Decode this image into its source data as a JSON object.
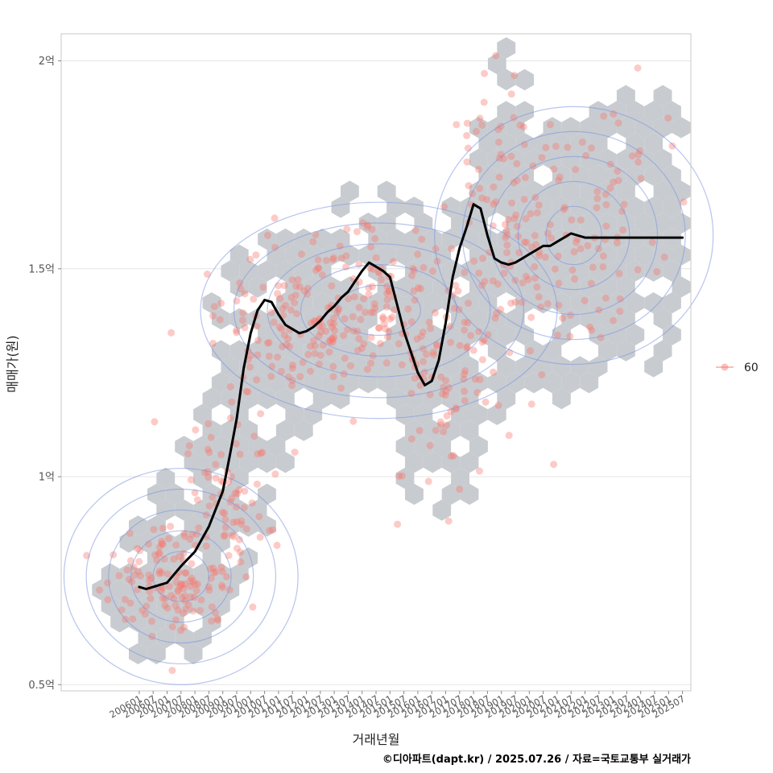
{
  "chart_data": {
    "type": "scatter",
    "xlabel": "거래년월",
    "ylabel": "매매가(원)",
    "y_ticks": [
      {
        "value": 50000000,
        "label": "0.5억"
      },
      {
        "value": 100000000,
        "label": "1억"
      },
      {
        "value": 150000000,
        "label": "1.5억"
      },
      {
        "value": 200000000,
        "label": "2억"
      }
    ],
    "ylim": [
      48500000,
      206500000
    ],
    "xlim": [
      -2.8,
      19.8
    ],
    "x_tick_labels": [
      "200601",
      "200607",
      "200701",
      "200707",
      "200801",
      "200807",
      "200901",
      "200907",
      "201001",
      "201007",
      "201101",
      "201107",
      "201201",
      "201207",
      "201301",
      "201307",
      "201401",
      "201407",
      "201501",
      "201507",
      "201601",
      "201607",
      "201701",
      "201707",
      "201801",
      "201807",
      "201901",
      "201907",
      "202001",
      "202007",
      "202101",
      "202107",
      "202201",
      "202207",
      "202301",
      "202307",
      "202401",
      "202407",
      "202501",
      "202507"
    ],
    "legend": {
      "position": "right",
      "entries": [
        "60"
      ]
    },
    "grid": true,
    "caption": "©디아파트(dapt.kr) / 2025.07.26 / 자료=국토교통부 실거래가",
    "trend_line": {
      "x": [
        0,
        0.25,
        0.5,
        0.75,
        1,
        1.25,
        1.5,
        2,
        2.5,
        3,
        3.25,
        3.5,
        3.75,
        4,
        4.25,
        4.5,
        4.75,
        5,
        5.25,
        5.5,
        5.75,
        6,
        6.25,
        6.5,
        6.75,
        7,
        7.25,
        7.5,
        7.75,
        8,
        8.25,
        8.5,
        8.75,
        9,
        9.25,
        9.5,
        9.75,
        10,
        10.25,
        10.5,
        10.75,
        11,
        11.25,
        11.5,
        11.75,
        12,
        12.25,
        12.5,
        12.75,
        13,
        13.25,
        13.5,
        13.75,
        14,
        14.25,
        14.5,
        14.75,
        15,
        15.25,
        15.5,
        15.75,
        16,
        16.25,
        16.5,
        16.75,
        17,
        17.25,
        17.5,
        17.75,
        18,
        18.25,
        18.5,
        18.75,
        19,
        19.25,
        19.5
      ],
      "y": [
        73500000,
        73000000,
        73500000,
        74000000,
        74500000,
        76500000,
        78500000,
        82000000,
        88000000,
        96500000,
        105000000,
        114000000,
        126000000,
        134500000,
        140000000,
        142500000,
        142000000,
        139000000,
        136500000,
        135500000,
        134500000,
        135000000,
        136000000,
        137500000,
        139500000,
        141000000,
        143000000,
        144500000,
        147000000,
        149500000,
        151500000,
        150500000,
        149500000,
        148000000,
        141500000,
        135000000,
        130000000,
        125000000,
        122000000,
        123000000,
        128000000,
        137000000,
        148000000,
        155000000,
        160000000,
        165500000,
        164500000,
        158000000,
        152500000,
        151500000,
        151000000,
        151500000,
        152500000,
        153500000,
        154500000,
        155500000,
        155500000,
        156500000,
        157500000,
        158500000,
        158000000,
        157500000,
        157500000,
        157500000,
        157500000,
        157500000,
        157500000,
        157500000,
        157500000,
        157500000,
        157500000,
        157500000,
        157500000,
        157500000,
        157500000,
        157500000
      ]
    },
    "hexbin_regions": [
      {
        "x": 0.8,
        "y": 73000000,
        "sx": 1.3,
        "sy": 10000000
      },
      {
        "x": 2.2,
        "y": 88000000,
        "sx": 1.1,
        "sy": 14000000
      },
      {
        "x": 3.8,
        "y": 118000000,
        "sx": 0.9,
        "sy": 20000000
      },
      {
        "x": 5.8,
        "y": 136000000,
        "sx": 1.4,
        "sy": 14000000
      },
      {
        "x": 8.4,
        "y": 145000000,
        "sx": 1.6,
        "sy": 14000000
      },
      {
        "x": 10.7,
        "y": 120000000,
        "sx": 1.0,
        "sy": 18000000
      },
      {
        "x": 12.6,
        "y": 150000000,
        "sx": 1.0,
        "sy": 20000000
      },
      {
        "x": 13.1,
        "y": 180000000,
        "sx": 0.6,
        "sy": 14000000
      },
      {
        "x": 14.8,
        "y": 150000000,
        "sx": 1.6,
        "sy": 18000000
      },
      {
        "x": 16.5,
        "y": 162000000,
        "sx": 1.5,
        "sy": 16000000
      },
      {
        "x": 18.0,
        "y": 160000000,
        "sx": 1.3,
        "sy": 20000000
      }
    ],
    "density_contours": [
      {
        "center": [
          1.5,
          76000000
        ],
        "rx": [
          1.0,
          1.8,
          2.6,
          3.4,
          4.2
        ],
        "ry": [
          6000000,
          11000000,
          16000000,
          21000000,
          26000000
        ]
      },
      {
        "center": [
          8.6,
          140000000
        ],
        "rx": [
          1.5,
          2.8,
          4.0,
          5.2,
          6.4
        ],
        "ry": [
          6000000,
          11000000,
          16000000,
          21000000,
          26000000
        ]
      },
      {
        "center": [
          15.6,
          158000000
        ],
        "rx": [
          1.0,
          2.0,
          3.0,
          4.0,
          5.0
        ],
        "ry": [
          7000000,
          13000000,
          19000000,
          25000000,
          31000000
        ]
      }
    ],
    "point_density": [
      {
        "x": 1.2,
        "y": 75000000,
        "sx": 1.2,
        "sy": 6000000,
        "n": 130
      },
      {
        "x": 3.2,
        "y": 100000000,
        "sx": 0.9,
        "sy": 12000000,
        "n": 80
      },
      {
        "x": 5.6,
        "y": 138000000,
        "sx": 1.4,
        "sy": 10000000,
        "n": 110
      },
      {
        "x": 8.4,
        "y": 143000000,
        "sx": 1.6,
        "sy": 10000000,
        "n": 130
      },
      {
        "x": 10.8,
        "y": 122000000,
        "sx": 0.9,
        "sy": 14000000,
        "n": 70
      },
      {
        "x": 12.8,
        "y": 160000000,
        "sx": 0.9,
        "sy": 18000000,
        "n": 90
      },
      {
        "x": 15.8,
        "y": 158000000,
        "sx": 1.8,
        "sy": 16000000,
        "n": 110
      }
    ]
  }
}
